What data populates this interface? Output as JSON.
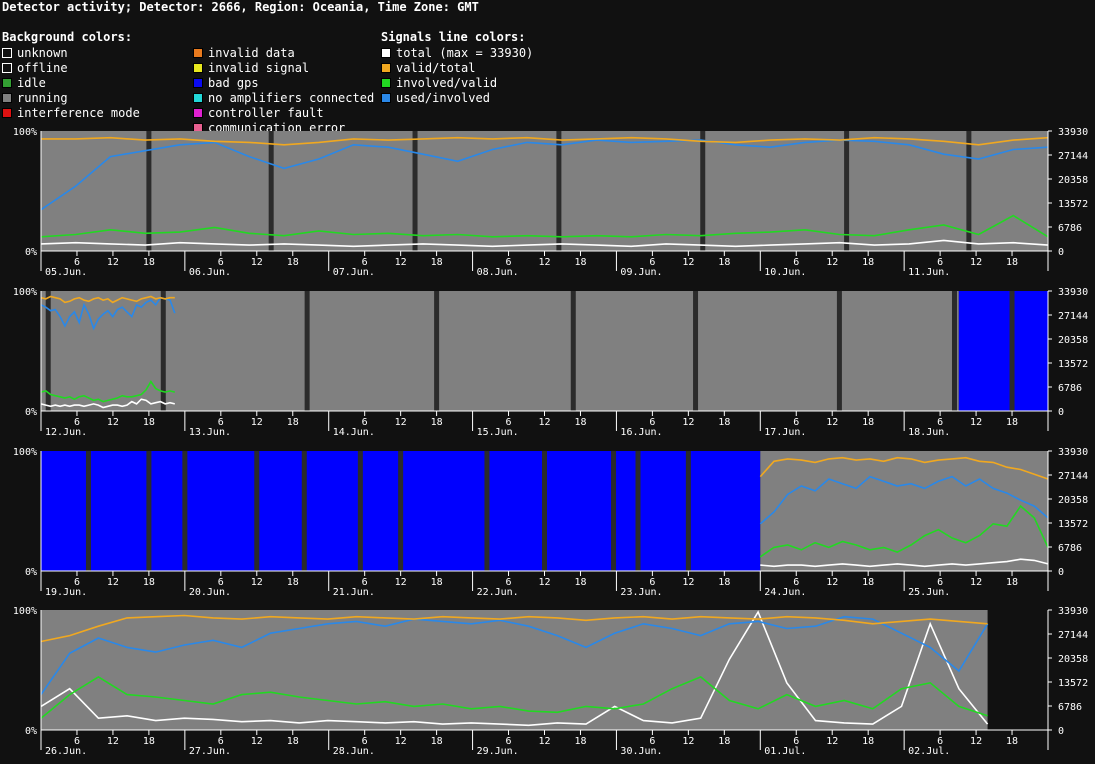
{
  "title": "Detector activity; Detector: 2666, Region: Oceania, Time Zone: GMT",
  "legend": {
    "background_header": "Background colors:",
    "background": [
      {
        "label": "unknown",
        "color": "#111111",
        "border": "#ffffff",
        "icon": "outline-square"
      },
      {
        "label": "offline",
        "color": "#111111",
        "border": "#ffffff",
        "icon": "outline-square"
      },
      {
        "label": "idle",
        "color": "#33a033",
        "icon": "square"
      },
      {
        "label": "running",
        "color": "#808080",
        "icon": "square"
      },
      {
        "label": "interference mode",
        "color": "#dd1111",
        "icon": "square"
      },
      {
        "label": "invalid data",
        "color": "#e87a1e",
        "icon": "square"
      },
      {
        "label": "invalid signal",
        "color": "#e8e81e",
        "icon": "square"
      },
      {
        "label": "bad gps",
        "color": "#0a0af0",
        "icon": "square"
      },
      {
        "label": "no amplifiers connected",
        "color": "#22d8d8",
        "icon": "square"
      },
      {
        "label": "controller fault",
        "color": "#e020d0",
        "icon": "square"
      },
      {
        "label": "communication error",
        "color": "#e86090",
        "icon": "square"
      }
    ],
    "signals_header": "Signals line colors:",
    "signals": [
      {
        "label": "total (max = 33930)",
        "color": "#ffffff"
      },
      {
        "label": "valid/total",
        "color": "#f0a820"
      },
      {
        "label": "involved/valid",
        "color": "#22d822"
      },
      {
        "label": "used/involved",
        "color": "#2a88e8"
      }
    ]
  },
  "colors": {
    "running": "#808080",
    "bad_gps": "#0000ff",
    "offline": "#2b2b2b",
    "page": "#111111",
    "total": "#ffffff",
    "valid": "#f0a820",
    "involved": "#22d822",
    "used": "#2a88e8",
    "axis": "#ffffff"
  },
  "chart_data": [
    {
      "type": "line",
      "yleft_ticks": [
        "100%",
        "0%"
      ],
      "yright_ticks": [
        "33930",
        "27144",
        "20358",
        "13572",
        "6786",
        "0"
      ],
      "ylim": [
        0,
        33930
      ],
      "x_ticks": [
        "6",
        "12",
        "18"
      ],
      "days": [
        "05.Jun.",
        "06.Jun.",
        "07.Jun.",
        "08.Jun.",
        "09.Jun.",
        "10.Jun.",
        "11.Jun."
      ],
      "background": [
        {
          "from": 0,
          "to": 7,
          "state": "running"
        }
      ],
      "offline_markers": [
        0.75,
        1.6,
        2.6,
        3.6,
        4.6,
        5.6,
        6.45
      ],
      "series": {
        "valid_total": [
          0.95,
          0.95,
          0.96,
          0.94,
          0.95,
          0.93,
          0.92,
          0.9,
          0.92,
          0.95,
          0.94,
          0.95,
          0.96,
          0.95,
          0.96,
          0.94,
          0.95,
          0.96,
          0.95,
          0.93,
          0.92,
          0.94,
          0.95,
          0.94,
          0.96,
          0.95,
          0.93,
          0.9,
          0.94,
          0.96
        ],
        "used_involved": [
          0.35,
          0.55,
          0.8,
          0.85,
          0.9,
          0.92,
          0.8,
          0.7,
          0.78,
          0.9,
          0.88,
          0.82,
          0.76,
          0.86,
          0.92,
          0.9,
          0.94,
          0.92,
          0.93,
          0.94,
          0.9,
          0.88,
          0.92,
          0.94,
          0.93,
          0.9,
          0.82,
          0.78,
          0.86,
          0.88
        ],
        "involved_valid": [
          0.12,
          0.14,
          0.18,
          0.15,
          0.16,
          0.2,
          0.15,
          0.13,
          0.17,
          0.14,
          0.15,
          0.13,
          0.14,
          0.12,
          0.13,
          0.12,
          0.13,
          0.12,
          0.14,
          0.13,
          0.15,
          0.16,
          0.18,
          0.14,
          0.13,
          0.18,
          0.22,
          0.14,
          0.3,
          0.12
        ],
        "total": [
          0.06,
          0.07,
          0.06,
          0.05,
          0.07,
          0.06,
          0.05,
          0.06,
          0.05,
          0.04,
          0.05,
          0.06,
          0.05,
          0.04,
          0.05,
          0.06,
          0.05,
          0.04,
          0.06,
          0.05,
          0.04,
          0.05,
          0.06,
          0.07,
          0.05,
          0.06,
          0.09,
          0.06,
          0.07,
          0.05
        ]
      }
    },
    {
      "type": "line",
      "yleft_ticks": [
        "100%",
        "0%"
      ],
      "yright_ticks": [
        "33930",
        "27144",
        "20358",
        "13572",
        "6786",
        "0"
      ],
      "ylim": [
        0,
        33930
      ],
      "x_ticks": [
        "6",
        "12",
        "18"
      ],
      "days": [
        "12.Jun.",
        "13.Jun.",
        "14.Jun.",
        "15.Jun.",
        "16.Jun.",
        "17.Jun.",
        "18.Jun."
      ],
      "background": [
        {
          "from": 0,
          "to": 6.38,
          "state": "running"
        },
        {
          "from": 6.38,
          "to": 7,
          "state": "bad_gps"
        }
      ],
      "offline_markers": [
        0.05,
        0.85,
        1.85,
        2.75,
        3.7,
        4.55,
        5.55,
        6.35,
        6.75
      ],
      "series_end": 0.93,
      "series": {
        "valid_total": [
          0.96,
          0.95,
          0.97,
          0.96,
          0.95,
          0.92,
          0.93,
          0.95,
          0.96,
          0.94,
          0.93,
          0.95,
          0.96,
          0.94,
          0.95,
          0.92,
          0.94,
          0.96,
          0.95,
          0.94,
          0.93,
          0.95,
          0.96,
          0.97,
          0.95,
          0.96,
          0.95,
          0.96,
          0.96
        ],
        "used_involved": [
          0.9,
          0.88,
          0.85,
          0.86,
          0.8,
          0.72,
          0.8,
          0.84,
          0.75,
          0.9,
          0.82,
          0.7,
          0.78,
          0.82,
          0.85,
          0.8,
          0.86,
          0.88,
          0.84,
          0.8,
          0.9,
          0.88,
          0.92,
          0.94,
          0.9,
          0.96,
          0.95,
          0.94,
          0.83
        ],
        "involved_valid": [
          0.16,
          0.17,
          0.14,
          0.13,
          0.12,
          0.11,
          0.12,
          0.1,
          0.12,
          0.13,
          0.11,
          0.09,
          0.1,
          0.08,
          0.09,
          0.1,
          0.11,
          0.13,
          0.12,
          0.12,
          0.13,
          0.14,
          0.18,
          0.25,
          0.19,
          0.17,
          0.16,
          0.17,
          0.16
        ],
        "total": [
          0.06,
          0.05,
          0.04,
          0.05,
          0.04,
          0.05,
          0.04,
          0.05,
          0.05,
          0.04,
          0.05,
          0.06,
          0.05,
          0.03,
          0.04,
          0.05,
          0.05,
          0.04,
          0.05,
          0.08,
          0.06,
          0.1,
          0.09,
          0.06,
          0.07,
          0.08,
          0.06,
          0.07,
          0.06
        ]
      }
    },
    {
      "type": "line",
      "yleft_ticks": [
        "100%",
        "0%"
      ],
      "yright_ticks": [
        "33930",
        "27144",
        "20358",
        "13572",
        "6786",
        "0"
      ],
      "ylim": [
        0,
        33930
      ],
      "x_ticks": [
        "6",
        "12",
        "18"
      ],
      "days": [
        "19.Jun.",
        "20.Jun.",
        "21.Jun.",
        "22.Jun.",
        "23.Jun.",
        "24.Jun.",
        "25.Jun."
      ],
      "background": [
        {
          "from": 0,
          "to": 5.0,
          "state": "bad_gps"
        },
        {
          "from": 5.0,
          "to": 7,
          "state": "running"
        }
      ],
      "offline_markers": [
        0.33,
        0.75,
        1.0,
        1.5,
        1.83,
        2.22,
        2.5,
        3.1,
        3.5,
        3.98,
        4.15,
        4.5
      ],
      "series_start": 5.0,
      "series": {
        "valid_total": [
          0.8,
          0.93,
          0.95,
          0.94,
          0.92,
          0.95,
          0.96,
          0.94,
          0.95,
          0.93,
          0.96,
          0.95,
          0.92,
          0.94,
          0.95,
          0.96,
          0.93,
          0.92,
          0.88,
          0.86,
          0.82,
          0.78
        ],
        "used_involved": [
          0.4,
          0.5,
          0.65,
          0.72,
          0.68,
          0.78,
          0.74,
          0.7,
          0.8,
          0.76,
          0.72,
          0.74,
          0.7,
          0.76,
          0.8,
          0.72,
          0.78,
          0.7,
          0.66,
          0.6,
          0.55,
          0.45
        ],
        "involved_valid": [
          0.12,
          0.2,
          0.22,
          0.18,
          0.24,
          0.2,
          0.25,
          0.22,
          0.18,
          0.2,
          0.16,
          0.22,
          0.3,
          0.35,
          0.28,
          0.24,
          0.3,
          0.4,
          0.38,
          0.55,
          0.45,
          0.2
        ],
        "total": [
          0.05,
          0.04,
          0.05,
          0.05,
          0.04,
          0.05,
          0.06,
          0.05,
          0.04,
          0.05,
          0.06,
          0.05,
          0.04,
          0.05,
          0.06,
          0.05,
          0.06,
          0.07,
          0.08,
          0.1,
          0.09,
          0.06
        ]
      }
    },
    {
      "type": "line",
      "yleft_ticks": [
        "100%",
        "0%"
      ],
      "yright_ticks": [
        "33930",
        "27144",
        "20358",
        "13572",
        "6786",
        "0"
      ],
      "ylim": [
        0,
        33930
      ],
      "x_ticks": [
        "6",
        "12",
        "18"
      ],
      "days": [
        "26.Jun.",
        "27.Jun.",
        "28.Jun.",
        "29.Jun.",
        "30.Jun.",
        "01.Jul.",
        "02.Jul."
      ],
      "background": [
        {
          "from": 0,
          "to": 6.58,
          "state": "running"
        }
      ],
      "offline_markers": [],
      "series_end": 6.58,
      "series": {
        "valid_total": [
          0.75,
          0.8,
          0.88,
          0.95,
          0.96,
          0.97,
          0.95,
          0.94,
          0.96,
          0.95,
          0.94,
          0.96,
          0.95,
          0.94,
          0.96,
          0.95,
          0.94,
          0.96,
          0.95,
          0.93,
          0.95,
          0.96,
          0.94,
          0.96,
          0.95,
          0.94,
          0.96,
          0.95,
          0.93,
          0.9,
          0.92,
          0.94,
          0.92,
          0.9
        ],
        "used_involved": [
          0.3,
          0.65,
          0.78,
          0.7,
          0.66,
          0.72,
          0.76,
          0.7,
          0.82,
          0.86,
          0.9,
          0.92,
          0.88,
          0.94,
          0.92,
          0.9,
          0.93,
          0.88,
          0.8,
          0.7,
          0.82,
          0.9,
          0.86,
          0.8,
          0.9,
          0.92,
          0.86,
          0.88,
          0.96,
          0.94,
          0.82,
          0.7,
          0.5,
          0.9
        ],
        "involved_valid": [
          0.1,
          0.3,
          0.45,
          0.3,
          0.28,
          0.25,
          0.22,
          0.3,
          0.32,
          0.28,
          0.25,
          0.22,
          0.24,
          0.2,
          0.22,
          0.18,
          0.2,
          0.16,
          0.15,
          0.2,
          0.18,
          0.22,
          0.35,
          0.45,
          0.25,
          0.18,
          0.3,
          0.2,
          0.25,
          0.18,
          0.35,
          0.4,
          0.2,
          0.12
        ],
        "total": [
          0.2,
          0.35,
          0.1,
          0.12,
          0.08,
          0.1,
          0.09,
          0.07,
          0.08,
          0.06,
          0.08,
          0.07,
          0.06,
          0.07,
          0.05,
          0.06,
          0.05,
          0.04,
          0.06,
          0.05,
          0.2,
          0.08,
          0.06,
          0.1,
          0.6,
          1.0,
          0.4,
          0.08,
          0.06,
          0.05,
          0.2,
          0.9,
          0.35,
          0.05
        ]
      }
    }
  ]
}
